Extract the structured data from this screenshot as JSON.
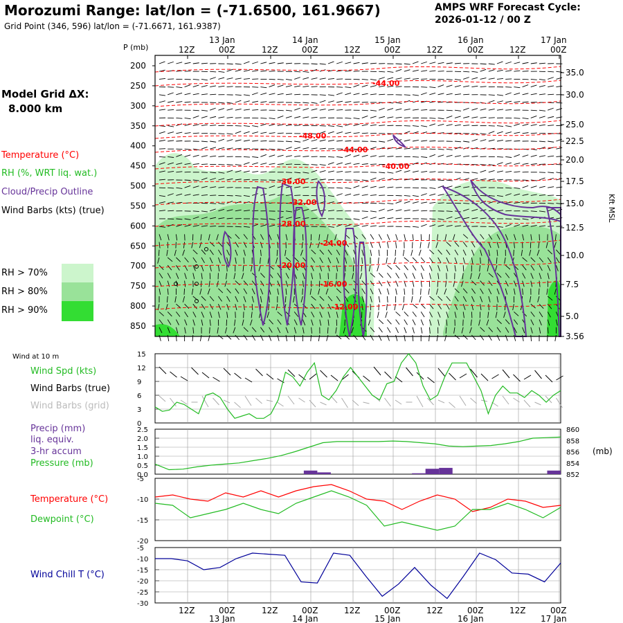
{
  "header": {
    "title": "Morozumi Range:  lat/lon = (-71.6500, 161.9667)",
    "grid_point": "Grid Point (346, 596) lat/lon = (-71.6671, 161.9387)",
    "cycle_line1": "AMPS WRF Forecast Cycle:",
    "cycle_line2": "2026-01-12 / 00  Z"
  },
  "left_labels": {
    "grid_title": "Model Grid ΔX:",
    "grid_value": "8.000 km",
    "temperature": "Temperature (°C)",
    "rh": "RH (%, WRT liq. wat.)",
    "cloud": "Cloud/Precip Outline",
    "wind": "Wind Barbs (kts) (true)",
    "rh70": "RH > 70%",
    "rh80": "RH > 80%",
    "rh90": "RH > 90%"
  },
  "colors": {
    "temp": "#ff0000",
    "rh_text": "#22bb22",
    "cloud": "#663399",
    "rh70": "#ccf5cc",
    "rh80": "#99e299",
    "rh90": "#33dd33",
    "wind_grid": "#aaaaaa",
    "precip": "#663399",
    "pressure": "#22bb22",
    "dewpoint": "#22bb22",
    "windchill": "#000099"
  },
  "time_axis": {
    "top_hours": [
      "12Z",
      "00Z",
      "12Z",
      "00Z",
      "12Z",
      "00Z",
      "12Z",
      "00Z",
      "12Z",
      "00Z"
    ],
    "top_days": [
      "13 Jan",
      "14 Jan",
      "15 Jan",
      "16 Jan",
      "17 Jan"
    ],
    "bottom_hours": [
      "12Z",
      "00Z",
      "12Z",
      "00Z",
      "12Z",
      "00Z",
      "12Z",
      "00Z",
      "12Z",
      "00Z"
    ],
    "bottom_days": [
      "13 Jan",
      "14 Jan",
      "15 Jan",
      "16 Jan",
      "17 Jan"
    ]
  },
  "panel_labels": {
    "p_axis": "P (mb)",
    "kft": "Kft MSL",
    "wind10": "Wind at 10 m",
    "wind_spd": "Wind Spd (kts)",
    "wind_true": "Wind Barbs (true)",
    "wind_grid": "Wind Barbs (grid)",
    "precip1": "Precip (mm)",
    "precip2": "liq. equiv.",
    "precip3": "3-hr accum",
    "pressure": "Pressure (mb)",
    "mb": "(mb)",
    "temperature": "Temperature (°C)",
    "dewpoint": "Dewpoint (°C)",
    "windchill": "Wind Chill T (°C)"
  },
  "chart_data": [
    {
      "type": "heatmap",
      "title": "Time-height cross section",
      "ylabel": "P (mb)",
      "y_ticks": [
        "200",
        "250",
        "300",
        "350",
        "400",
        "450",
        "500",
        "550",
        "600",
        "650",
        "700",
        "750",
        "800",
        "850"
      ],
      "right_ticks": [
        "35.0",
        "30.0",
        "25.0",
        "22.5",
        "20.0",
        "17.5",
        "15.0",
        "12.5",
        "10.0",
        "7.5",
        "5.0",
        "3.56"
      ],
      "right_label": "Kft MSL",
      "temp_labels": [
        "-44.00",
        "-48.00",
        "-44.00",
        "-40.00",
        "-36.00",
        "-32.00",
        "-28.00",
        "-24.00",
        "-20.00",
        "-16.00",
        "-12.00"
      ]
    },
    {
      "type": "line",
      "title": "Wind at 10 m",
      "ylim": [
        0,
        15
      ],
      "y_ticks": [
        "15",
        "12",
        "9",
        "6",
        "3",
        "0"
      ],
      "series": [
        {
          "name": "Wind Spd (kts)",
          "values": [
            3.5,
            2.5,
            2.8,
            4.5,
            4.0,
            3.0,
            2.0,
            6.0,
            6.5,
            5.5,
            3.0,
            1.0,
            1.5,
            2.0,
            1.0,
            1.0,
            2.0,
            5.0,
            11.0,
            10.0,
            8.0,
            11.0,
            13.0,
            6.0,
            5.0,
            7.0,
            10.0,
            12.0,
            10.0,
            8.0,
            6.0,
            5.0,
            8.5,
            9.0,
            13.0,
            15.0,
            13.0,
            8.0,
            5.0,
            6.0,
            10.0,
            13.0,
            13.0,
            13.0,
            10.0,
            7.0,
            2.0,
            6.0,
            8.0,
            6.5,
            6.5,
            5.5,
            7.0,
            6.0,
            4.5,
            6.0,
            7.0
          ]
        }
      ]
    },
    {
      "type": "line",
      "title": "Precip / Pressure",
      "ylim": [
        0,
        2.5
      ],
      "y_ticks": [
        "2.5",
        "2.0",
        "1.5",
        "1.0",
        "0.5",
        "0.0"
      ],
      "right_ticks": [
        "860",
        "858",
        "856",
        "854",
        "852"
      ],
      "series": [
        {
          "name": "Pressure (mb)",
          "values": [
            853.8,
            852.8,
            852.9,
            853.3,
            853.6,
            853.8,
            854.0,
            854.4,
            854.8,
            855.3,
            856.0,
            856.8,
            857.6,
            857.8,
            857.8,
            857.8,
            857.8,
            857.9,
            857.8,
            857.6,
            857.4,
            857.0,
            856.9,
            857.0,
            857.1,
            857.4,
            857.8,
            858.4,
            858.5,
            858.6
          ]
        }
      ],
      "precip_bars": [
        {
          "x": 11,
          "value": 0.2
        },
        {
          "x": 12,
          "value": 0.1
        },
        {
          "x": 19,
          "value": 0.05
        },
        {
          "x": 20,
          "value": 0.3
        },
        {
          "x": 21,
          "value": 0.35
        },
        {
          "x": 29,
          "value": 0.2
        }
      ]
    },
    {
      "type": "line",
      "title": "Temperature / Dewpoint",
      "ylim": [
        -20,
        -5
      ],
      "y_ticks": [
        "-5",
        "-10",
        "-15",
        "-20"
      ],
      "series": [
        {
          "name": "Temperature (°C)",
          "values": [
            -9.5,
            -9.0,
            -10.0,
            -10.5,
            -8.5,
            -9.5,
            -8.0,
            -9.5,
            -8.0,
            -7.0,
            -6.5,
            -8.0,
            -10.0,
            -10.5,
            -12.5,
            -10.5,
            -9.0,
            -10.0,
            -13.0,
            -12.0,
            -10.0,
            -10.5,
            -12.0,
            -11.5
          ]
        },
        {
          "name": "Dewpoint (°C)",
          "values": [
            -11.0,
            -11.5,
            -14.5,
            -13.5,
            -12.5,
            -11.0,
            -12.5,
            -13.5,
            -11.0,
            -9.5,
            -8.0,
            -9.5,
            -11.5,
            -16.5,
            -15.5,
            -16.5,
            -17.5,
            -16.5,
            -12.5,
            -12.5,
            -11.0,
            -12.5,
            -14.5,
            -12.0
          ]
        }
      ]
    },
    {
      "type": "line",
      "title": "Wind Chill",
      "ylim": [
        -30,
        -5
      ],
      "y_ticks": [
        "-5",
        "-10",
        "-15",
        "-20",
        "-25",
        "-30"
      ],
      "series": [
        {
          "name": "Wind Chill T (°C)",
          "values": [
            -10.0,
            -10.0,
            -11.0,
            -15.0,
            -14.0,
            -10.0,
            -7.5,
            -8.0,
            -8.5,
            -20.5,
            -21.0,
            -7.5,
            -8.5,
            -18.0,
            -27.0,
            -21.5,
            -14.0,
            -22.0,
            -28.0,
            -18.0,
            -7.5,
            -10.5,
            -16.5,
            -17.0,
            -20.5,
            -12.0
          ]
        }
      ]
    }
  ]
}
